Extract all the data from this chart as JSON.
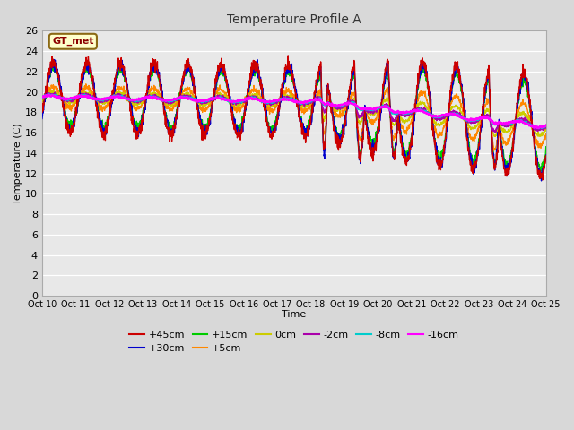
{
  "title": "Temperature Profile A",
  "xlabel": "Time",
  "ylabel": "Temperature (C)",
  "ylim": [
    0,
    26
  ],
  "yticks": [
    0,
    2,
    4,
    6,
    8,
    10,
    12,
    14,
    16,
    18,
    20,
    22,
    24,
    26
  ],
  "series": [
    {
      "label": "+45cm",
      "color": "#cc0000",
      "lw": 1.0,
      "zorder": 5
    },
    {
      "label": "+30cm",
      "color": "#0000cc",
      "lw": 1.0,
      "zorder": 4
    },
    {
      "label": "+15cm",
      "color": "#00cc00",
      "lw": 1.0,
      "zorder": 3
    },
    {
      "label": "+5cm",
      "color": "#ff8800",
      "lw": 1.0,
      "zorder": 3
    },
    {
      "label": "0cm",
      "color": "#cccc00",
      "lw": 1.0,
      "zorder": 3
    },
    {
      "label": "-2cm",
      "color": "#aa00aa",
      "lw": 1.2,
      "zorder": 6
    },
    {
      "label": "-8cm",
      "color": "#00cccc",
      "lw": 1.2,
      "zorder": 6
    },
    {
      "label": "-16cm",
      "color": "#ff00ff",
      "lw": 1.4,
      "zorder": 7
    }
  ],
  "xtick_labels": [
    "Oct 10",
    "Oct 11",
    "Oct 12",
    "Oct 13",
    "Oct 14",
    "Oct 15",
    "Oct 16",
    "Oct 17",
    "Oct 18",
    "Oct 19",
    "Oct 20",
    "Oct 21",
    "Oct 22",
    "Oct 23",
    "Oct 24",
    "Oct 25"
  ],
  "fig_bg": "#d8d8d8",
  "plot_bg": "#e8e8e8",
  "annotation_text": "GT_met",
  "grid_color": "#ffffff",
  "legend_ncol_row1": 6,
  "legend_ncol_row2": 2
}
